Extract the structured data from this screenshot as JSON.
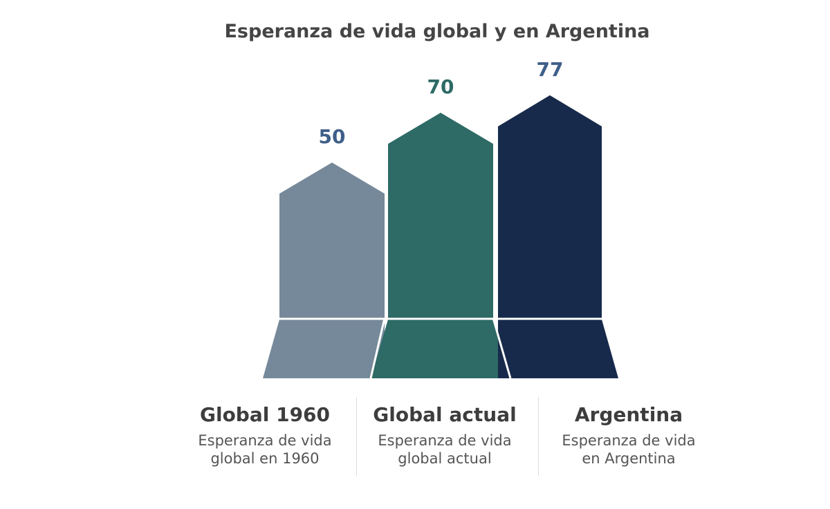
{
  "chart_data": {
    "type": "bar",
    "title": "Esperanza de vida global y en Argentina",
    "categories": [
      "Global 1960",
      "Global actual",
      "Argentina"
    ],
    "values": [
      50,
      70,
      77
    ],
    "descriptions": [
      [
        "Esperanza de vida",
        "global en 1960"
      ],
      [
        "Esperanza de vida",
        "global actual"
      ],
      [
        "Esperanza de vida",
        "en  Argentina"
      ]
    ],
    "colors": [
      "#76899a",
      "#2e6a66",
      "#172a4b"
    ],
    "label_colors": [
      "#3f5f8a",
      "#2e6a66",
      "#3f5f8a"
    ]
  }
}
